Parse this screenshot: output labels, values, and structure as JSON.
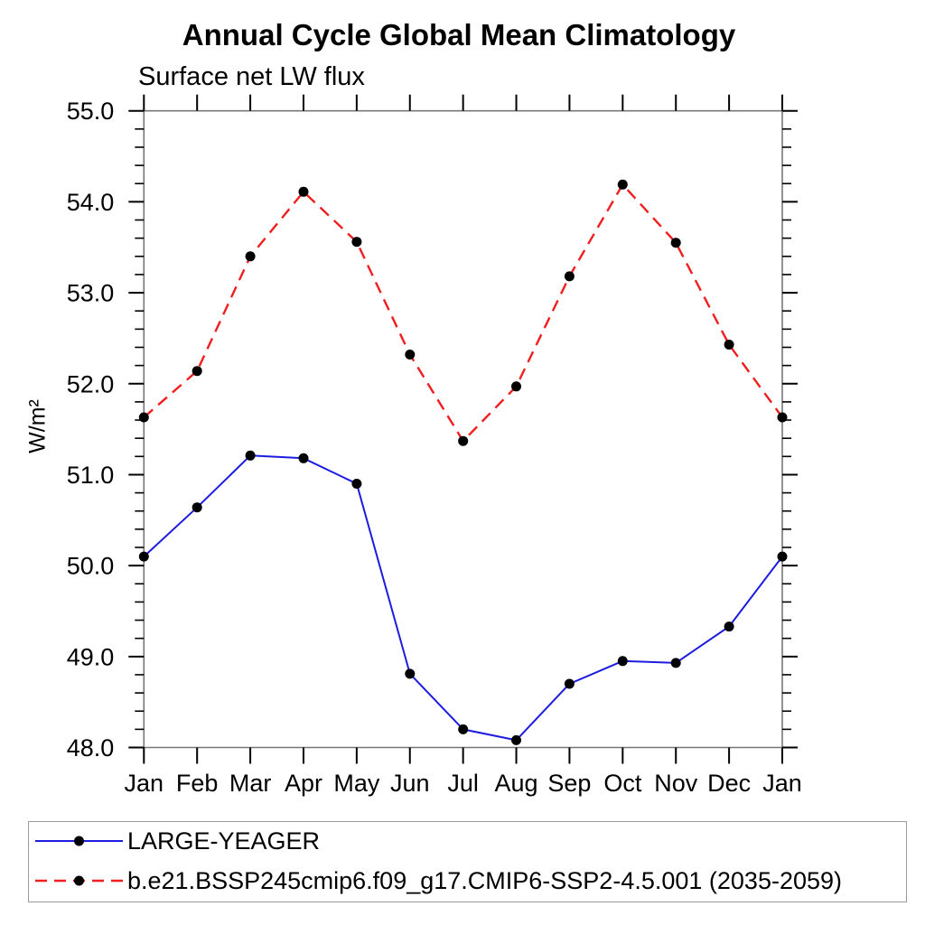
{
  "chart_data": {
    "type": "line",
    "title": "Annual Cycle Global Mean Climatology",
    "subtitle": "Surface net LW flux",
    "ylabel": "W/m²",
    "xlabel": "",
    "categories": [
      "Jan",
      "Feb",
      "Mar",
      "Apr",
      "May",
      "Jun",
      "Jul",
      "Aug",
      "Sep",
      "Oct",
      "Nov",
      "Dec",
      "Jan"
    ],
    "ylim": [
      48.0,
      55.0
    ],
    "ytick_labels": [
      "48.0",
      "49.0",
      "50.0",
      "51.0",
      "52.0",
      "53.0",
      "54.0",
      "55.0"
    ],
    "ytick_minor_step": 0.2,
    "grid": false,
    "legend_position": "bottom",
    "series": [
      {
        "name": "LARGE-YEAGER",
        "color": "#1c1ce0",
        "line_style": "solid",
        "marker": "filled-circle",
        "marker_color": "#000000",
        "values": [
          50.1,
          50.64,
          51.21,
          51.18,
          50.9,
          48.81,
          48.2,
          48.08,
          48.7,
          48.95,
          48.93,
          49.33,
          50.1
        ]
      },
      {
        "name": "b.e21.BSSP245cmip6.f09_g17.CMIP6-SSP2-4.5.001 (2035-2059)",
        "color": "#f01f1f",
        "line_style": "dashed",
        "marker": "filled-circle",
        "marker_color": "#000000",
        "values": [
          51.63,
          52.14,
          53.4,
          54.11,
          53.56,
          52.32,
          51.37,
          51.97,
          53.18,
          54.19,
          53.55,
          52.43,
          51.63
        ]
      }
    ]
  }
}
